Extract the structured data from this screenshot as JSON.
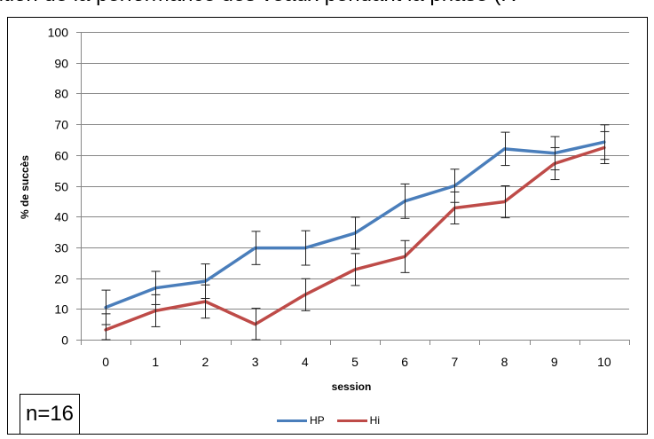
{
  "title": "olution de la performance des veaux pendant la phase (R",
  "annotation": "n=16",
  "colors": {
    "HP": "#4a7ebb",
    "Hi": "#be4b48"
  },
  "chart_data": {
    "type": "line",
    "title": "olution de la performance des veaux pendant la phase (R",
    "xlabel": "session",
    "ylabel": "% de succès",
    "x": [
      0,
      1,
      2,
      3,
      4,
      5,
      6,
      7,
      8,
      9,
      10
    ],
    "ylim": [
      0,
      100
    ],
    "yticks": [
      0,
      10,
      20,
      30,
      40,
      50,
      60,
      70,
      80,
      90,
      100
    ],
    "grid": true,
    "legend_position": "bottom",
    "series": [
      {
        "name": "HP",
        "values": [
          10.5,
          16.8,
          19,
          29.8,
          29.8,
          34.6,
          45,
          50,
          62,
          60.6,
          64.2
        ],
        "errors": [
          5.6,
          5.4,
          5.6,
          5.4,
          5.6,
          5.2,
          5.6,
          5.4,
          5.4,
          5.4,
          5.6
        ]
      },
      {
        "name": "Hi",
        "values": [
          3.2,
          9.4,
          12.4,
          5,
          14.6,
          22.8,
          27,
          42.8,
          44.8,
          57.2,
          62.4
        ],
        "errors": [
          5.2,
          5.2,
          5.4,
          5.2,
          5.2,
          5.2,
          5.2,
          5.2,
          5.2,
          5.2,
          5.2
        ]
      }
    ]
  }
}
